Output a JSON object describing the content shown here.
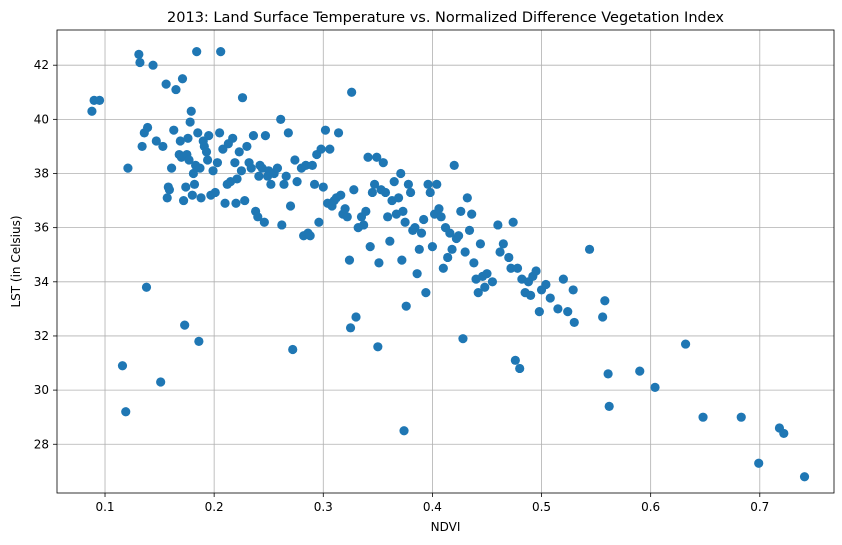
{
  "chart_data": {
    "type": "scatter",
    "title": "2013: Land Surface Temperature vs. Normalized Difference Vegetation Index",
    "xlabel": "NDVI",
    "ylabel": "LST (in Celsius)",
    "xlim": [
      0.056,
      0.768
    ],
    "ylim": [
      26.2,
      43.3
    ],
    "xticks": [
      0.1,
      0.2,
      0.3,
      0.4,
      0.5,
      0.6,
      0.7
    ],
    "xtick_labels": [
      "0.1",
      "0.2",
      "0.3",
      "0.4",
      "0.5",
      "0.6",
      "0.7"
    ],
    "yticks": [
      28,
      30,
      32,
      34,
      36,
      38,
      40,
      42
    ],
    "ytick_labels": [
      "28",
      "30",
      "32",
      "34",
      "36",
      "38",
      "40",
      "42"
    ],
    "grid": true,
    "marker_color": "#1f77b4",
    "points": [
      [
        0.088,
        40.3
      ],
      [
        0.09,
        40.7
      ],
      [
        0.095,
        40.7
      ],
      [
        0.116,
        30.9
      ],
      [
        0.119,
        29.2
      ],
      [
        0.121,
        38.2
      ],
      [
        0.131,
        42.4
      ],
      [
        0.132,
        42.1
      ],
      [
        0.134,
        39.0
      ],
      [
        0.136,
        39.5
      ],
      [
        0.138,
        33.8
      ],
      [
        0.139,
        39.7
      ],
      [
        0.144,
        42.0
      ],
      [
        0.147,
        39.2
      ],
      [
        0.151,
        30.3
      ],
      [
        0.153,
        39.0
      ],
      [
        0.156,
        41.3
      ],
      [
        0.157,
        37.1
      ],
      [
        0.158,
        37.5
      ],
      [
        0.159,
        37.4
      ],
      [
        0.161,
        38.2
      ],
      [
        0.163,
        39.6
      ],
      [
        0.165,
        41.1
      ],
      [
        0.168,
        38.7
      ],
      [
        0.169,
        39.2
      ],
      [
        0.17,
        38.6
      ],
      [
        0.171,
        41.5
      ],
      [
        0.172,
        37.0
      ],
      [
        0.173,
        32.4
      ],
      [
        0.174,
        37.5
      ],
      [
        0.175,
        38.7
      ],
      [
        0.176,
        39.3
      ],
      [
        0.177,
        38.5
      ],
      [
        0.178,
        39.9
      ],
      [
        0.179,
        40.3
      ],
      [
        0.18,
        37.2
      ],
      [
        0.181,
        38.0
      ],
      [
        0.182,
        37.6
      ],
      [
        0.183,
        38.3
      ],
      [
        0.184,
        42.5
      ],
      [
        0.185,
        39.5
      ],
      [
        0.186,
        31.8
      ],
      [
        0.187,
        38.2
      ],
      [
        0.188,
        37.1
      ],
      [
        0.19,
        39.2
      ],
      [
        0.191,
        39.0
      ],
      [
        0.193,
        38.8
      ],
      [
        0.194,
        38.5
      ],
      [
        0.195,
        39.4
      ],
      [
        0.197,
        37.2
      ],
      [
        0.199,
        38.1
      ],
      [
        0.201,
        37.3
      ],
      [
        0.203,
        38.4
      ],
      [
        0.205,
        39.5
      ],
      [
        0.206,
        42.5
      ],
      [
        0.208,
        38.9
      ],
      [
        0.21,
        36.9
      ],
      [
        0.212,
        37.6
      ],
      [
        0.213,
        39.1
      ],
      [
        0.215,
        37.7
      ],
      [
        0.217,
        39.3
      ],
      [
        0.219,
        38.4
      ],
      [
        0.22,
        36.9
      ],
      [
        0.221,
        37.8
      ],
      [
        0.223,
        38.8
      ],
      [
        0.225,
        38.1
      ],
      [
        0.226,
        40.8
      ],
      [
        0.228,
        37.0
      ],
      [
        0.23,
        39.0
      ],
      [
        0.232,
        38.4
      ],
      [
        0.234,
        38.2
      ],
      [
        0.236,
        39.4
      ],
      [
        0.238,
        36.6
      ],
      [
        0.24,
        36.4
      ],
      [
        0.241,
        37.9
      ],
      [
        0.242,
        38.3
      ],
      [
        0.244,
        38.2
      ],
      [
        0.246,
        36.2
      ],
      [
        0.247,
        39.4
      ],
      [
        0.249,
        37.9
      ],
      [
        0.25,
        38.1
      ],
      [
        0.252,
        37.6
      ],
      [
        0.255,
        38.0
      ],
      [
        0.258,
        38.2
      ],
      [
        0.261,
        40.0
      ],
      [
        0.262,
        36.1
      ],
      [
        0.264,
        37.6
      ],
      [
        0.266,
        37.9
      ],
      [
        0.268,
        39.5
      ],
      [
        0.27,
        36.8
      ],
      [
        0.272,
        31.5
      ],
      [
        0.274,
        38.5
      ],
      [
        0.276,
        37.7
      ],
      [
        0.28,
        38.2
      ],
      [
        0.282,
        35.7
      ],
      [
        0.284,
        38.3
      ],
      [
        0.286,
        35.8
      ],
      [
        0.288,
        35.7
      ],
      [
        0.29,
        38.3
      ],
      [
        0.292,
        37.6
      ],
      [
        0.294,
        38.7
      ],
      [
        0.296,
        36.2
      ],
      [
        0.298,
        38.9
      ],
      [
        0.3,
        37.5
      ],
      [
        0.302,
        39.6
      ],
      [
        0.304,
        36.9
      ],
      [
        0.306,
        38.9
      ],
      [
        0.308,
        36.8
      ],
      [
        0.31,
        37.0
      ],
      [
        0.312,
        37.1
      ],
      [
        0.314,
        39.5
      ],
      [
        0.316,
        37.2
      ],
      [
        0.318,
        36.5
      ],
      [
        0.32,
        36.7
      ],
      [
        0.322,
        36.4
      ],
      [
        0.324,
        34.8
      ],
      [
        0.325,
        32.3
      ],
      [
        0.326,
        41.0
      ],
      [
        0.328,
        37.4
      ],
      [
        0.33,
        32.7
      ],
      [
        0.332,
        36.0
      ],
      [
        0.335,
        36.4
      ],
      [
        0.337,
        36.1
      ],
      [
        0.339,
        36.6
      ],
      [
        0.341,
        38.6
      ],
      [
        0.343,
        35.3
      ],
      [
        0.345,
        37.3
      ],
      [
        0.347,
        37.6
      ],
      [
        0.349,
        38.6
      ],
      [
        0.35,
        31.6
      ],
      [
        0.351,
        34.7
      ],
      [
        0.353,
        37.4
      ],
      [
        0.355,
        38.4
      ],
      [
        0.357,
        37.3
      ],
      [
        0.359,
        36.4
      ],
      [
        0.361,
        35.5
      ],
      [
        0.363,
        37.0
      ],
      [
        0.365,
        37.7
      ],
      [
        0.367,
        36.5
      ],
      [
        0.369,
        37.1
      ],
      [
        0.371,
        38.0
      ],
      [
        0.372,
        34.8
      ],
      [
        0.373,
        36.6
      ],
      [
        0.374,
        28.5
      ],
      [
        0.375,
        36.2
      ],
      [
        0.376,
        33.1
      ],
      [
        0.378,
        37.6
      ],
      [
        0.38,
        37.3
      ],
      [
        0.382,
        35.9
      ],
      [
        0.384,
        36.0
      ],
      [
        0.386,
        34.3
      ],
      [
        0.388,
        35.2
      ],
      [
        0.39,
        35.8
      ],
      [
        0.392,
        36.3
      ],
      [
        0.394,
        33.6
      ],
      [
        0.396,
        37.6
      ],
      [
        0.398,
        37.3
      ],
      [
        0.4,
        35.3
      ],
      [
        0.402,
        36.5
      ],
      [
        0.404,
        37.6
      ],
      [
        0.406,
        36.7
      ],
      [
        0.408,
        36.4
      ],
      [
        0.41,
        34.5
      ],
      [
        0.412,
        36.0
      ],
      [
        0.414,
        34.9
      ],
      [
        0.416,
        35.8
      ],
      [
        0.418,
        35.2
      ],
      [
        0.42,
        38.3
      ],
      [
        0.422,
        35.6
      ],
      [
        0.424,
        35.7
      ],
      [
        0.426,
        36.6
      ],
      [
        0.428,
        31.9
      ],
      [
        0.43,
        35.1
      ],
      [
        0.432,
        37.1
      ],
      [
        0.434,
        35.9
      ],
      [
        0.436,
        36.5
      ],
      [
        0.438,
        34.7
      ],
      [
        0.44,
        34.1
      ],
      [
        0.442,
        33.6
      ],
      [
        0.444,
        35.4
      ],
      [
        0.446,
        34.2
      ],
      [
        0.448,
        33.8
      ],
      [
        0.45,
        34.3
      ],
      [
        0.455,
        34.0
      ],
      [
        0.46,
        36.1
      ],
      [
        0.462,
        35.1
      ],
      [
        0.465,
        35.4
      ],
      [
        0.47,
        34.9
      ],
      [
        0.472,
        34.5
      ],
      [
        0.474,
        36.2
      ],
      [
        0.476,
        31.1
      ],
      [
        0.478,
        34.5
      ],
      [
        0.48,
        30.8
      ],
      [
        0.482,
        34.1
      ],
      [
        0.485,
        33.6
      ],
      [
        0.488,
        34.0
      ],
      [
        0.49,
        33.5
      ],
      [
        0.492,
        34.2
      ],
      [
        0.495,
        34.4
      ],
      [
        0.498,
        32.9
      ],
      [
        0.5,
        33.7
      ],
      [
        0.504,
        33.9
      ],
      [
        0.508,
        33.4
      ],
      [
        0.515,
        33.0
      ],
      [
        0.52,
        34.1
      ],
      [
        0.524,
        32.9
      ],
      [
        0.529,
        33.7
      ],
      [
        0.53,
        32.5
      ],
      [
        0.544,
        35.2
      ],
      [
        0.556,
        32.7
      ],
      [
        0.558,
        33.3
      ],
      [
        0.561,
        30.6
      ],
      [
        0.562,
        29.4
      ],
      [
        0.59,
        30.7
      ],
      [
        0.604,
        30.1
      ],
      [
        0.632,
        31.7
      ],
      [
        0.648,
        29.0
      ],
      [
        0.683,
        29.0
      ],
      [
        0.699,
        27.3
      ],
      [
        0.718,
        28.6
      ],
      [
        0.722,
        28.4
      ],
      [
        0.741,
        26.8
      ]
    ]
  }
}
